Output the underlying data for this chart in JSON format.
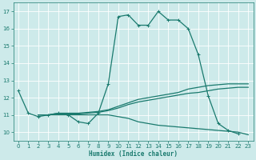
{
  "xlabel": "Humidex (Indice chaleur)",
  "bg_color": "#cdeaea",
  "grid_color": "#ffffff",
  "line_color": "#1a7a6e",
  "xlim": [
    -0.5,
    23.5
  ],
  "ylim": [
    9.5,
    17.5
  ],
  "xticks": [
    0,
    1,
    2,
    3,
    4,
    5,
    6,
    7,
    8,
    9,
    10,
    11,
    12,
    13,
    14,
    15,
    16,
    17,
    18,
    19,
    20,
    21,
    22,
    23
  ],
  "yticks": [
    10,
    11,
    12,
    13,
    14,
    15,
    16,
    17
  ],
  "line_main_x": [
    0,
    1,
    2,
    3,
    4,
    5,
    6,
    7,
    8,
    9,
    10,
    11,
    12,
    13,
    14,
    15,
    16,
    17,
    18,
    19,
    20,
    21,
    22
  ],
  "line_main_y": [
    12.4,
    11.1,
    10.9,
    11.0,
    11.1,
    11.0,
    10.6,
    10.5,
    11.1,
    12.8,
    16.7,
    16.8,
    16.2,
    16.2,
    17.0,
    16.5,
    16.5,
    16.0,
    14.5,
    12.1,
    10.5,
    10.1,
    9.9
  ],
  "line_upper_x": [
    2,
    3,
    4,
    5,
    6,
    7,
    8,
    9,
    10,
    11,
    12,
    13,
    14,
    15,
    16,
    17,
    18,
    19,
    20,
    21,
    22,
    23
  ],
  "line_upper_y": [
    11.0,
    11.0,
    11.1,
    11.1,
    11.1,
    11.15,
    11.2,
    11.3,
    11.5,
    11.7,
    11.9,
    12.0,
    12.1,
    12.2,
    12.3,
    12.5,
    12.6,
    12.7,
    12.75,
    12.8,
    12.8,
    12.8
  ],
  "line_lower_x": [
    2,
    3,
    4,
    5,
    6,
    7,
    8,
    9,
    10,
    11,
    12,
    13,
    14,
    15,
    16,
    17,
    18,
    19,
    20,
    21,
    22,
    23
  ],
  "line_lower_y": [
    11.0,
    11.0,
    11.0,
    11.0,
    11.0,
    11.0,
    11.0,
    11.0,
    10.9,
    10.8,
    10.6,
    10.5,
    10.4,
    10.35,
    10.3,
    10.25,
    10.2,
    10.15,
    10.1,
    10.05,
    10.0,
    9.85
  ],
  "line_mid_x": [
    2,
    3,
    4,
    5,
    6,
    7,
    8,
    9,
    10,
    11,
    12,
    13,
    14,
    15,
    16,
    17,
    18,
    19,
    20,
    21,
    22,
    23
  ],
  "line_mid_y": [
    11.0,
    11.0,
    11.05,
    11.05,
    11.05,
    11.1,
    11.15,
    11.25,
    11.4,
    11.6,
    11.75,
    11.85,
    11.95,
    12.05,
    12.15,
    12.25,
    12.3,
    12.4,
    12.5,
    12.55,
    12.6,
    12.6
  ]
}
